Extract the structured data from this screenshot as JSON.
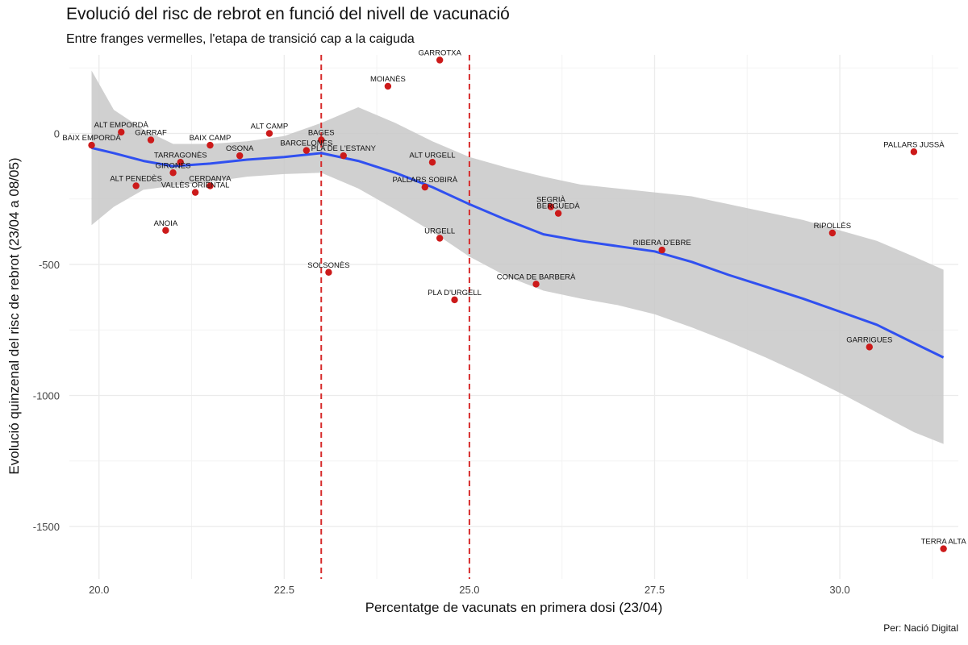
{
  "chart_data": {
    "type": "scatter",
    "title": "Evolució del risc de rebrot en funció del nivell de vacunació",
    "subtitle": "Entre franges vermelles, l'etapa de transició cap a la caiguda",
    "xlabel": "Percentatge de vacunats en primera dosi (23/04)",
    "ylabel": "Evolució quinzenal del risc de rebrot (23/04 a 08/05)",
    "caption": "Per: Nació Digital",
    "xlim": [
      19.6,
      31.6
    ],
    "ylim": [
      -1700,
      300
    ],
    "x_ticks": [
      "20.0",
      "22.5",
      "25.0",
      "27.5",
      "30.0"
    ],
    "x_tick_values": [
      20.0,
      22.5,
      25.0,
      27.5,
      30.0
    ],
    "y_ticks": [
      "0",
      "-500",
      "-1000",
      "-1500"
    ],
    "y_tick_values": [
      0,
      -500,
      -1000,
      -1500
    ],
    "grid": true,
    "vlines": [
      23.0,
      25.0
    ],
    "colors": {
      "points": "#cc1a1a",
      "smooth": "#3050f0",
      "band": "#c8c8c8",
      "vlines": "#d62b2b",
      "grid": "#ebebeb"
    },
    "points": [
      {
        "label": "GARROTXA",
        "x": 24.6,
        "y": 280
      },
      {
        "label": "MOIANÈS",
        "x": 23.9,
        "y": 180
      },
      {
        "label": "ALT EMPORDÀ",
        "x": 20.3,
        "y": 5
      },
      {
        "label": "BAIX EMPORDÀ",
        "x": 19.9,
        "y": -45
      },
      {
        "label": "GARRAF",
        "x": 20.7,
        "y": -25
      },
      {
        "label": "ALT CAMP",
        "x": 22.3,
        "y": 0
      },
      {
        "label": "BAGES",
        "x": 23.0,
        "y": -25
      },
      {
        "label": "BAIX CAMP",
        "x": 21.5,
        "y": -45
      },
      {
        "label": "BARCELONÈS",
        "x": 22.8,
        "y": -65
      },
      {
        "label": "OSONA",
        "x": 21.9,
        "y": -85
      },
      {
        "label": "PLA DE L'ESTANY",
        "x": 23.3,
        "y": -85
      },
      {
        "label": "ALT URGELL",
        "x": 24.5,
        "y": -110
      },
      {
        "label": "TARRAGONÈS",
        "x": 21.1,
        "y": -110
      },
      {
        "label": "GIRONÈS",
        "x": 21.0,
        "y": -150
      },
      {
        "label": "ALT PENEDÈS",
        "x": 20.5,
        "y": -200
      },
      {
        "label": "CERDANYA",
        "x": 21.5,
        "y": -200
      },
      {
        "label": "VALLÈS ORIENTAL",
        "x": 21.3,
        "y": -225
      },
      {
        "label": "PALLARS SOBIRÀ",
        "x": 24.4,
        "y": -205
      },
      {
        "label": "SEGRIÀ",
        "x": 26.1,
        "y": -280
      },
      {
        "label": "BERGUEDÀ",
        "x": 26.2,
        "y": -305
      },
      {
        "label": "ANOIA",
        "x": 20.9,
        "y": -370
      },
      {
        "label": "URGELL",
        "x": 24.6,
        "y": -400
      },
      {
        "label": "RIBERA D'EBRE",
        "x": 27.6,
        "y": -445
      },
      {
        "label": "RIPOLLÈS",
        "x": 29.9,
        "y": -380
      },
      {
        "label": "PALLARS JUSSÀ",
        "x": 31.0,
        "y": -70
      },
      {
        "label": "SOLSONÈS",
        "x": 23.1,
        "y": -530
      },
      {
        "label": "CONCA DE BARBERÀ",
        "x": 25.9,
        "y": -575
      },
      {
        "label": "PLA D'URGELL",
        "x": 24.8,
        "y": -635
      },
      {
        "label": "GARRIGUES",
        "x": 30.4,
        "y": -815
      },
      {
        "label": "TERRA ALTA",
        "x": 31.4,
        "y": -1585
      }
    ],
    "smooth": {
      "x": [
        19.9,
        20.2,
        20.6,
        21.0,
        21.5,
        22.0,
        22.5,
        23.0,
        23.5,
        24.0,
        24.5,
        25.0,
        25.5,
        26.0,
        26.5,
        27.0,
        27.5,
        28.0,
        28.5,
        29.0,
        29.5,
        30.0,
        30.5,
        31.0,
        31.4
      ],
      "y": [
        -55,
        -75,
        -105,
        -125,
        -115,
        -100,
        -90,
        -75,
        -105,
        -150,
        -205,
        -270,
        -330,
        -385,
        -410,
        -430,
        -450,
        -490,
        -540,
        -585,
        -630,
        -680,
        -730,
        -800,
        -855
      ],
      "lower": [
        -350,
        -280,
        -215,
        -200,
        -185,
        -165,
        -155,
        -150,
        -210,
        -290,
        -375,
        -470,
        -545,
        -600,
        -630,
        -655,
        -690,
        -740,
        -795,
        -855,
        -920,
        -990,
        -1065,
        -1140,
        -1185
      ],
      "upper": [
        240,
        90,
        15,
        -40,
        -40,
        -30,
        -10,
        40,
        100,
        40,
        -30,
        -90,
        -130,
        -165,
        -195,
        -210,
        -225,
        -240,
        -270,
        -300,
        -330,
        -370,
        -410,
        -470,
        -520
      ]
    }
  }
}
